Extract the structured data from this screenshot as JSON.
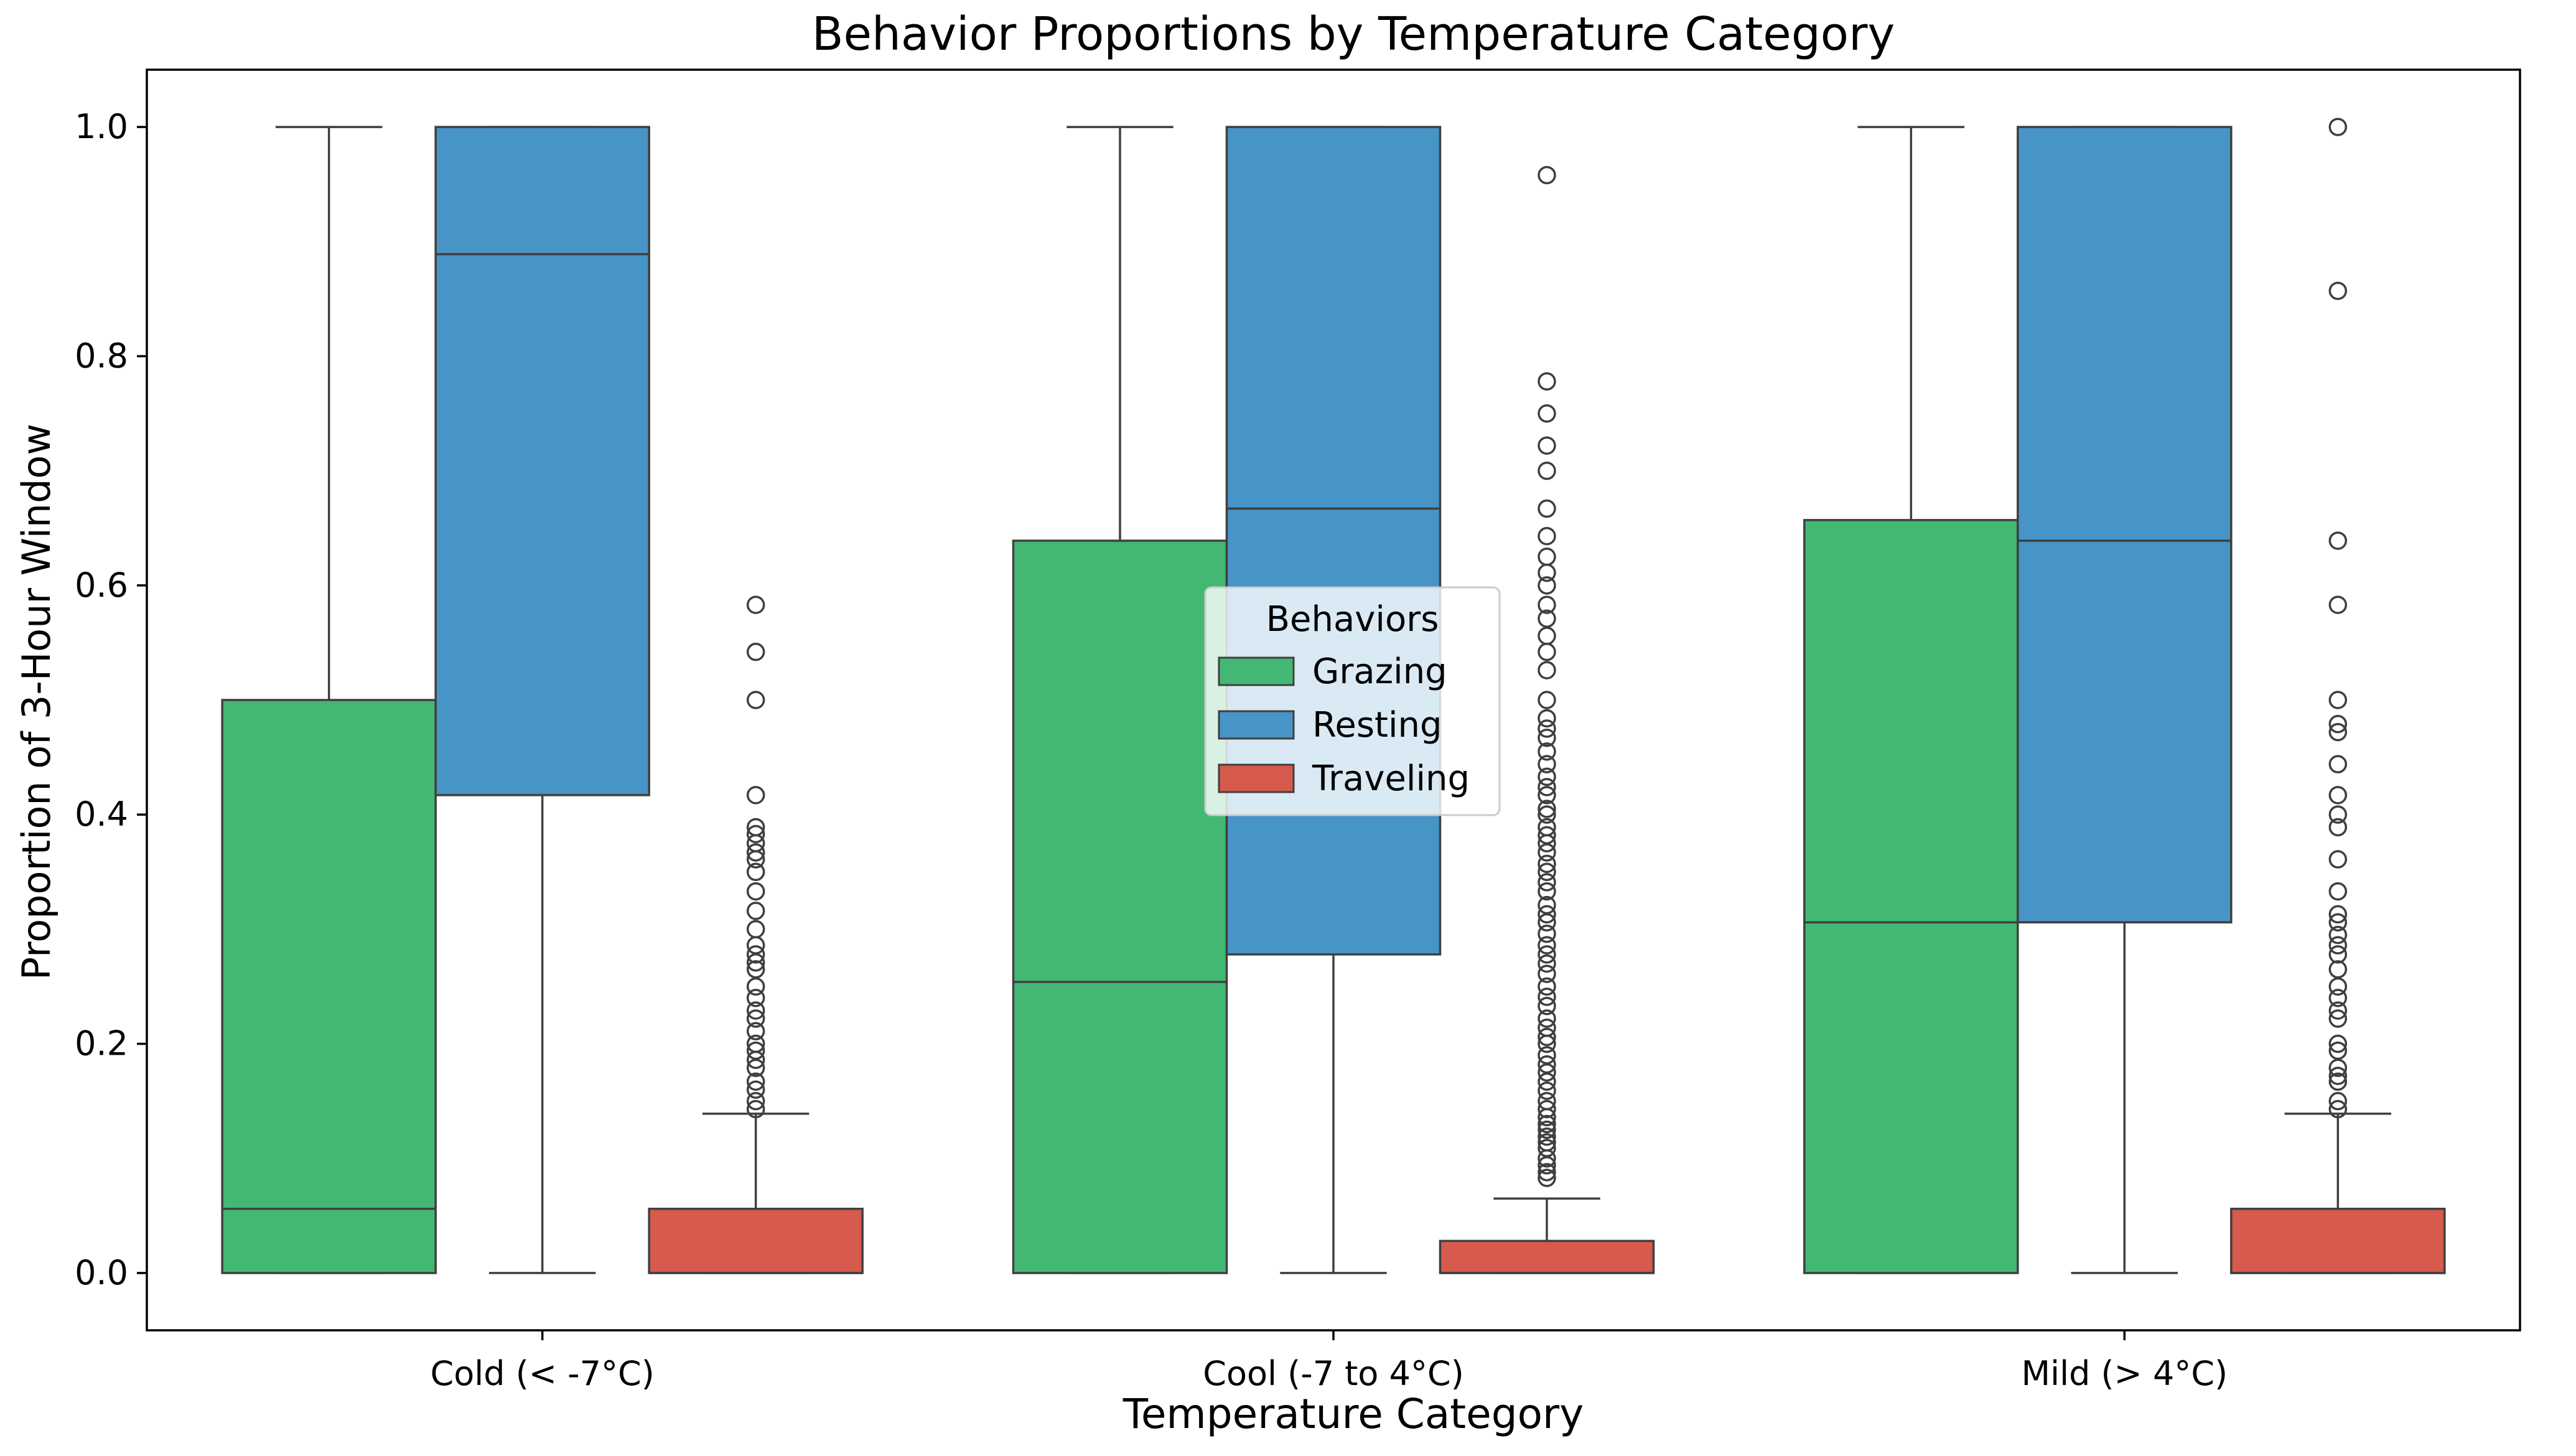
{
  "chart_data": {
    "type": "box",
    "title": "Behavior Proportions by Temperature Category",
    "xlabel": "Temperature Category",
    "ylabel": "Proportion of 3-Hour Window",
    "categories": [
      "Cold (< -7°C)",
      "Cool (-7 to 4°C)",
      "Mild (> 4°C)"
    ],
    "ylim": [
      -0.05,
      1.05
    ],
    "yticks": [
      0.0,
      0.2,
      0.4,
      0.6,
      0.8,
      1.0
    ],
    "ytick_labels": [
      "0.0",
      "0.2",
      "0.4",
      "0.6",
      "0.8",
      "1.0"
    ],
    "grid": false,
    "legend": {
      "title": "Behaviors",
      "placement": "center"
    },
    "series": [
      {
        "name": "Grazing",
        "color": "#43b873",
        "boxes": [
          {
            "whislo": 0.0,
            "q1": 0.0,
            "med": 0.056,
            "q3": 0.5,
            "whishi": 1.0,
            "fliers": []
          },
          {
            "whislo": 0.0,
            "q1": 0.0,
            "med": 0.254,
            "q3": 0.639,
            "whishi": 1.0,
            "fliers": []
          },
          {
            "whislo": 0.0,
            "q1": 0.0,
            "med": 0.306,
            "q3": 0.657,
            "whishi": 1.0,
            "fliers": []
          }
        ]
      },
      {
        "name": "Resting",
        "color": "#4794c6",
        "boxes": [
          {
            "whislo": 0.0,
            "q1": 0.417,
            "med": 0.889,
            "q3": 1.0,
            "whishi": 1.0,
            "fliers": []
          },
          {
            "whislo": 0.0,
            "q1": 0.278,
            "med": 0.667,
            "q3": 1.0,
            "whishi": 1.0,
            "fliers": []
          },
          {
            "whislo": 0.0,
            "q1": 0.306,
            "med": 0.639,
            "q3": 1.0,
            "whishi": 1.0,
            "fliers": []
          }
        ]
      },
      {
        "name": "Traveling",
        "color": "#d65a4d",
        "boxes": [
          {
            "whislo": 0.0,
            "q1": 0.0,
            "med": 0.0,
            "q3": 0.056,
            "whishi": 0.139,
            "fliers": [
              0.583,
              0.542,
              0.5,
              0.417,
              0.389,
              0.383,
              0.375,
              0.367,
              0.361,
              0.35,
              0.333,
              0.316,
              0.3,
              0.286,
              0.278,
              0.271,
              0.265,
              0.25,
              0.24,
              0.229,
              0.222,
              0.211,
              0.2,
              0.194,
              0.186,
              0.179,
              0.167,
              0.16,
              0.15,
              0.143
            ]
          },
          {
            "whislo": 0.0,
            "q1": 0.0,
            "med": 0.0,
            "q3": 0.028,
            "whishi": 0.065,
            "fliers": [
              0.958,
              0.778,
              0.75,
              0.722,
              0.7,
              0.667,
              0.643,
              0.625,
              0.611,
              0.6,
              0.583,
              0.571,
              0.556,
              0.542,
              0.526,
              0.5,
              0.484,
              0.475,
              0.467,
              0.455,
              0.444,
              0.433,
              0.424,
              0.417,
              0.405,
              0.4,
              0.389,
              0.382,
              0.375,
              0.367,
              0.357,
              0.35,
              0.341,
              0.333,
              0.321,
              0.313,
              0.306,
              0.296,
              0.286,
              0.278,
              0.27,
              0.261,
              0.25,
              0.241,
              0.233,
              0.222,
              0.214,
              0.206,
              0.2,
              0.19,
              0.182,
              0.175,
              0.167,
              0.159,
              0.15,
              0.143,
              0.136,
              0.13,
              0.125,
              0.119,
              0.114,
              0.109,
              0.1,
              0.094,
              0.088,
              0.083
            ]
          },
          {
            "whislo": 0.0,
            "q1": 0.0,
            "med": 0.0,
            "q3": 0.056,
            "whishi": 0.139,
            "fliers": [
              1.0,
              0.857,
              0.639,
              0.583,
              0.5,
              0.479,
              0.472,
              0.444,
              0.417,
              0.4,
              0.389,
              0.361,
              0.333,
              0.313,
              0.306,
              0.295,
              0.286,
              0.278,
              0.265,
              0.25,
              0.24,
              0.229,
              0.222,
              0.2,
              0.194,
              0.179,
              0.172,
              0.167,
              0.15,
              0.143
            ]
          }
        ]
      }
    ]
  }
}
